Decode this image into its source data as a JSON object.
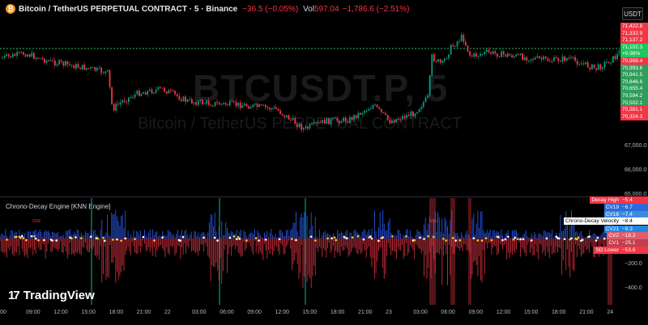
{
  "header": {
    "title": "Bitcoin / TetherUS PERPETUAL CONTRACT · 5 · Binance",
    "change": "−36.5 (−0.05%)",
    "vol_label": "Vol",
    "vol_value": "597.04",
    "vol_change": "−1,786.6 (−2.51%)",
    "currency_button": "USDT",
    "logo_glyph": "₿"
  },
  "watermark": {
    "symbol": "BTCUSDT.P, 5",
    "name": "Bitcoin / TetherUS PERPETUAL CONTRACT"
  },
  "price_axis": [
    "67,000.0",
    "66,000.0",
    "65,000.0"
  ],
  "price_tags": [
    {
      "text": "71,422.8",
      "kind": "red"
    },
    {
      "text": "71,332.9",
      "kind": "red"
    },
    {
      "text": "71,137.2",
      "kind": "red"
    },
    {
      "text": "71,102.3",
      "kind": "bright"
    },
    {
      "text": "+0.98%",
      "kind": "bright"
    },
    {
      "text": "70,998.4",
      "kind": "red"
    },
    {
      "text": "70,993.6",
      "kind": "green"
    },
    {
      "text": "70,941.5",
      "kind": "green"
    },
    {
      "text": "70,846.6",
      "kind": "green"
    },
    {
      "text": "70,655.4",
      "kind": "green"
    },
    {
      "text": "70,594.2",
      "kind": "green"
    },
    {
      "text": "70,502.1",
      "kind": "green"
    },
    {
      "text": "70,381.1",
      "kind": "red"
    },
    {
      "text": "70,324.3",
      "kind": "red"
    }
  ],
  "indicator": {
    "title": "Chrono-Decay Engine [KNN Engine]",
    "axis": [
      "−200.0",
      "−400.0"
    ],
    "tags": [
      {
        "label": "Decay High",
        "value": "−5.4",
        "lcolor": "#f23645",
        "vcolor": "#f23645"
      },
      {
        "label": "CV19",
        "value": "−6.7",
        "lcolor": "#2a6bd8",
        "vcolor": "#2a6bd8"
      },
      {
        "label": "CV18",
        "value": "−7.4",
        "lcolor": "#3d8be0",
        "vcolor": "#3d8be0"
      },
      {
        "label": "Chrono-Decay Velocity",
        "value": "−8.4",
        "lcolor": "#ffffff",
        "vcolor": "#ffffff"
      },
      {
        "label": "CV21",
        "value": "−9.3",
        "lcolor": "#1e88e5",
        "vcolor": "#1e88e5"
      },
      {
        "label": "CV2",
        "value": "−18.2",
        "lcolor": "#e05c6b",
        "vcolor": "#e05c6b"
      },
      {
        "label": "CV1",
        "value": "−25.1",
        "lcolor": "#c0404e",
        "vcolor": "#c0404e"
      },
      {
        "label": "SD Lower",
        "value": "−53.6",
        "lcolor": "#f23645",
        "vcolor": "#f23645"
      }
    ],
    "mark_labels": [
      "SSS",
      "SSS"
    ]
  },
  "brand": {
    "name": "TradingView",
    "mark": "17"
  },
  "time_axis": [
    "00",
    "09:00",
    "12:00",
    "15:00",
    "18:00",
    "21:00",
    "22",
    "03:00",
    "06:00",
    "09:00",
    "12:00",
    "15:00",
    "18:00",
    "21:00",
    "23",
    "03:00",
    "06:00",
    "09:00",
    "12:00",
    "15:00",
    "18:00",
    "21:00",
    "24"
  ],
  "colors": {
    "up": "#089981",
    "down": "#f23645",
    "ref_line": "#22c45e",
    "bg": "#000000"
  }
}
